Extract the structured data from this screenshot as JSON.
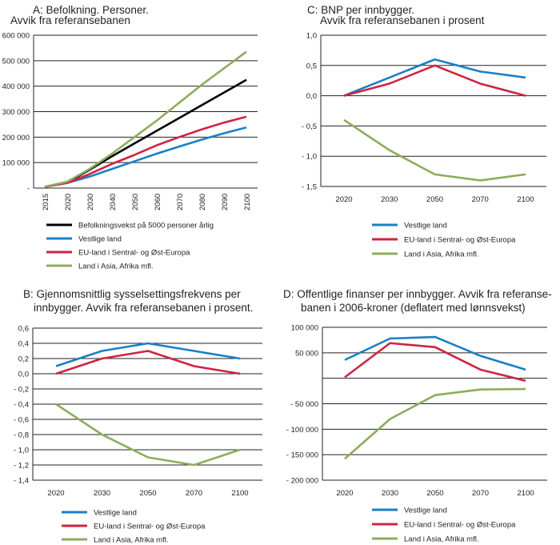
{
  "colors": {
    "Befolkningsvekst på 5000 personer årlig": "#000000",
    "Vestlige land": "#1b7fc6",
    "EU-land i Sentral- og Øst-Europa": "#cf2444",
    "Land i Asia, Afrika mfl.": "#8cad5b"
  },
  "chart_data": [
    {
      "id": "A",
      "type": "line",
      "title": [
        "A: Befolkning. Personer.",
        "Avvik fra referansebanen"
      ],
      "categories": [
        "2015",
        "2020",
        "2030",
        "2040",
        "2050",
        "2060",
        "2070",
        "2080",
        "2090",
        "2100"
      ],
      "ylim": [
        0,
        600000
      ],
      "yticks": [
        "-",
        "100 000",
        "200 000",
        "300 000",
        "400 000",
        "500 000",
        "600 000"
      ],
      "grid": true,
      "legend": "bottom",
      "series": [
        {
          "name": "Befolkningsvekst på 5000 personer årlig",
          "values": [
            5000,
            22000,
            72000,
            125000,
            175000,
            225000,
            275000,
            325000,
            375000,
            425000
          ]
        },
        {
          "name": "Vestlige land",
          "values": [
            5000,
            20000,
            45000,
            75000,
            105000,
            135000,
            163000,
            190000,
            215000,
            238000
          ]
        },
        {
          "name": "EU-land i Sentral- og Øst-Europa",
          "values": [
            5000,
            20000,
            55000,
            95000,
            130000,
            168000,
            200000,
            230000,
            257000,
            280000
          ]
        },
        {
          "name": "Land i Asia, Afrika mfl.",
          "values": [
            5000,
            25000,
            75000,
            135000,
            200000,
            265000,
            335000,
            405000,
            470000,
            535000
          ]
        }
      ]
    },
    {
      "id": "C",
      "type": "line",
      "title": [
        "C: BNP per innbygger.",
        "Avvik fra referansebanen i prosent"
      ],
      "categories": [
        "2020",
        "2030",
        "2050",
        "2070",
        "2100"
      ],
      "ylim": [
        -1.5,
        1.0
      ],
      "yticks": [
        "- 1,5",
        "- 1,0",
        "- 0,5",
        "0,0",
        "0,5",
        "1,0"
      ],
      "grid": true,
      "legend": "bottom",
      "series": [
        {
          "name": "Vestlige land",
          "values": [
            0.0,
            0.3,
            0.6,
            0.4,
            0.3
          ]
        },
        {
          "name": "EU-land i Sentral- og Øst-Europa",
          "values": [
            0.0,
            0.2,
            0.5,
            0.2,
            0.0
          ]
        },
        {
          "name": "Land i Asia, Afrika mfl.",
          "values": [
            -0.4,
            -0.9,
            -1.3,
            -1.4,
            -1.3
          ]
        }
      ]
    },
    {
      "id": "B",
      "type": "line",
      "title": [
        "B: Gjennomsnittlig sysselsettingsfrekvens per",
        "innbygger. Avvik fra referansebanen i prosent."
      ],
      "categories": [
        "2020",
        "2030",
        "2050",
        "2070",
        "2100"
      ],
      "ylim": [
        -1.4,
        0.6
      ],
      "yticks": [
        "- 1,4",
        "- 1,2",
        "- 1,0",
        "- 0,8",
        "- 0,6",
        "- 0,4",
        "- 0,2",
        "0,0",
        "0,2",
        "0,4",
        "0,6"
      ],
      "grid": true,
      "legend": "bottom",
      "series": [
        {
          "name": "Vestlige land",
          "values": [
            0.1,
            0.3,
            0.4,
            0.3,
            0.2
          ]
        },
        {
          "name": "EU-land i Sentral- og Øst-Europa",
          "values": [
            0.0,
            0.2,
            0.3,
            0.1,
            0.0
          ]
        },
        {
          "name": "Land i Asia, Afrika mfl.",
          "values": [
            -0.4,
            -0.8,
            -1.1,
            -1.2,
            -1.0
          ]
        }
      ]
    },
    {
      "id": "D",
      "type": "line",
      "title": [
        "D: Offentlige finanser per innbygger. Avvik fra referanse-",
        "banen i 2006-kroner (deflatert med lønnsvekst)"
      ],
      "categories": [
        "2020",
        "2030",
        "2050",
        "2070",
        "2100"
      ],
      "ylim": [
        -200000,
        100000
      ],
      "yticks": [
        "- 200 000",
        "- 150 000",
        "- 100 000",
        "- 50 000",
        "",
        "50 000",
        "100 000"
      ],
      "grid": true,
      "legend": "bottom",
      "series": [
        {
          "name": "Vestlige land",
          "values": [
            36000,
            78000,
            81000,
            44000,
            17000
          ]
        },
        {
          "name": "EU-land i Sentral- og Øst-Europa",
          "values": [
            2000,
            69000,
            61000,
            17000,
            -5000
          ]
        },
        {
          "name": "Land i Asia, Afrika mfl.",
          "values": [
            -158000,
            -80000,
            -33000,
            -22000,
            -21000
          ]
        }
      ]
    }
  ]
}
